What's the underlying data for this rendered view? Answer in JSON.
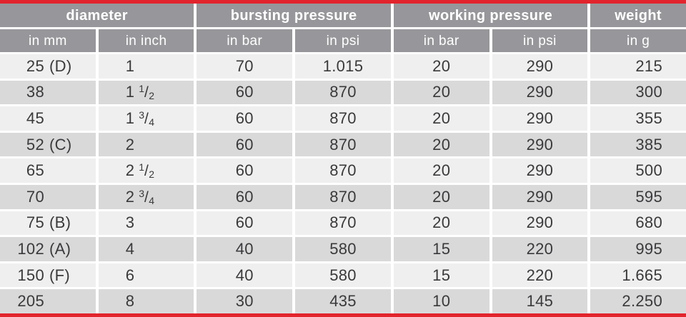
{
  "colors": {
    "accent_red": "#e2242d",
    "header_gray": "#97969a",
    "row_light": "#f0efef",
    "row_dark": "#dad9da",
    "text_dark": "#3a393b",
    "header_text": "#ffffff"
  },
  "table": {
    "fraction_slash": "/",
    "groups": [
      {
        "id": "diameter",
        "label": "diameter",
        "span": 2
      },
      {
        "id": "bursting-pressure",
        "label": "bursting pressure",
        "span": 2
      },
      {
        "id": "working-pressure",
        "label": "working pressure",
        "span": 2
      },
      {
        "id": "weight",
        "label": "weight",
        "span": 1
      }
    ],
    "columns": [
      {
        "id": "mm",
        "key": "mm",
        "label": "in mm",
        "align": "mm"
      },
      {
        "id": "inch",
        "key": "inch",
        "label": "in inch",
        "align": "left"
      },
      {
        "id": "burst-bar",
        "key": "burst_bar",
        "label": "in bar",
        "align": "center"
      },
      {
        "id": "burst-psi",
        "key": "burst_psi",
        "label": "in psi",
        "align": "center"
      },
      {
        "id": "work-bar",
        "key": "work_bar",
        "label": "in bar",
        "align": "center"
      },
      {
        "id": "work-psi",
        "key": "work_psi",
        "label": "in psi",
        "align": "center"
      },
      {
        "id": "weight-g",
        "key": "weight",
        "label": "in g",
        "align": "right"
      }
    ],
    "rows": [
      {
        "mm": "25",
        "mm_note": "(D)",
        "inch": {
          "whole": "1"
        },
        "burst_bar": "70",
        "burst_psi": "1.015",
        "work_bar": "20",
        "work_psi": "290",
        "weight": "215"
      },
      {
        "mm": "38",
        "inch": {
          "whole": "1",
          "num": "1",
          "den": "2"
        },
        "burst_bar": "60",
        "burst_psi": "870",
        "work_bar": "20",
        "work_psi": "290",
        "weight": "300"
      },
      {
        "mm": "45",
        "inch": {
          "whole": "1",
          "num": "3",
          "den": "4"
        },
        "burst_bar": "60",
        "burst_psi": "870",
        "work_bar": "20",
        "work_psi": "290",
        "weight": "355"
      },
      {
        "mm": "52",
        "mm_note": "(C)",
        "inch": {
          "whole": "2"
        },
        "burst_bar": "60",
        "burst_psi": "870",
        "work_bar": "20",
        "work_psi": "290",
        "weight": "385"
      },
      {
        "mm": "65",
        "inch": {
          "whole": "2",
          "num": "1",
          "den": "2"
        },
        "burst_bar": "60",
        "burst_psi": "870",
        "work_bar": "20",
        "work_psi": "290",
        "weight": "500"
      },
      {
        "mm": "70",
        "inch": {
          "whole": "2",
          "num": "3",
          "den": "4"
        },
        "burst_bar": "60",
        "burst_psi": "870",
        "work_bar": "20",
        "work_psi": "290",
        "weight": "595"
      },
      {
        "mm": "75",
        "mm_note": "(B)",
        "inch": {
          "whole": "3"
        },
        "burst_bar": "60",
        "burst_psi": "870",
        "work_bar": "20",
        "work_psi": "290",
        "weight": "680"
      },
      {
        "mm": "102",
        "mm_note": "(A)",
        "inch": {
          "whole": "4"
        },
        "burst_bar": "40",
        "burst_psi": "580",
        "work_bar": "15",
        "work_psi": "220",
        "weight": "995"
      },
      {
        "mm": "150",
        "mm_note": "(F)",
        "inch": {
          "whole": "6"
        },
        "burst_bar": "40",
        "burst_psi": "580",
        "work_bar": "15",
        "work_psi": "220",
        "weight": "1.665"
      },
      {
        "mm": "205",
        "inch": {
          "whole": "8"
        },
        "burst_bar": "30",
        "burst_psi": "435",
        "work_bar": "10",
        "work_psi": "145",
        "weight": "2.250"
      }
    ]
  }
}
